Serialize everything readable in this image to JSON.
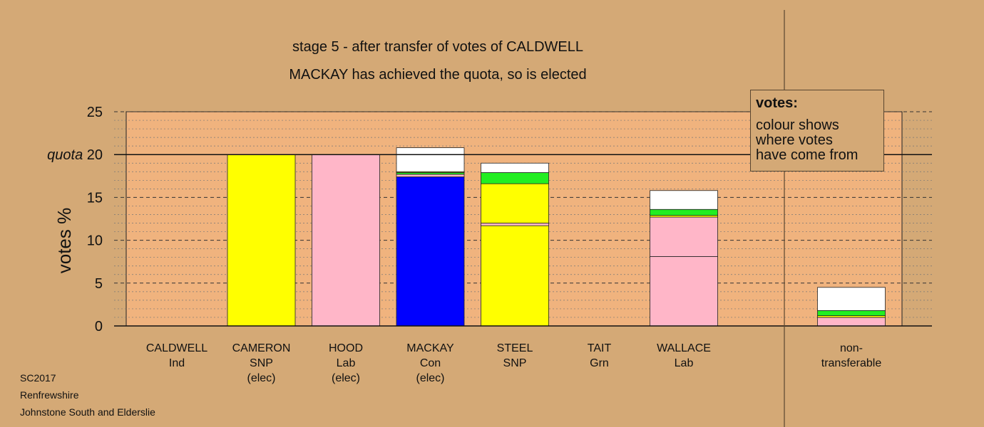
{
  "title_line1": "stage 5 - after transfer of votes of CALDWELL",
  "title_line2": "MACKAY has achieved the quota, so is elected",
  "legend": {
    "title": "votes:",
    "text": [
      "colour shows",
      "where votes",
      "have come from"
    ]
  },
  "footer": [
    "SC2017",
    "Renfrewshire",
    "Johnstone South and Elderslie"
  ],
  "colors": {
    "background": "#d4a976",
    "plot_fill": "#f0b37e",
    "Con": "#0000ff",
    "SNP": "#ffff00",
    "Lab": "#ffb6c8",
    "Grn": "#22ee22",
    "Ind": "#ffffff"
  },
  "chart_data": {
    "type": "bar",
    "stacked": true,
    "ylabel": "votes %",
    "ylim": [
      0,
      25
    ],
    "yticks": [
      "0",
      "5",
      "10",
      "15",
      "quota 20",
      "25"
    ],
    "quota": 20,
    "grid": true,
    "categories": [
      {
        "name": "CALDWELL",
        "party": "Ind",
        "status": ""
      },
      {
        "name": "CAMERON",
        "party": "SNP",
        "status": "(elec)"
      },
      {
        "name": "HOOD",
        "party": "Lab",
        "status": "(elec)"
      },
      {
        "name": "MACKAY",
        "party": "Con",
        "status": "(elec)"
      },
      {
        "name": "STEEL",
        "party": "SNP",
        "status": ""
      },
      {
        "name": "TAIT",
        "party": "Grn",
        "status": ""
      },
      {
        "name": "WALLACE",
        "party": "Lab",
        "status": ""
      },
      {
        "name": "non-",
        "party": "transferable",
        "status": ""
      }
    ],
    "bars": [
      {
        "category": "CALDWELL",
        "segments": []
      },
      {
        "category": "CAMERON",
        "segments": [
          {
            "from": "SNP",
            "value": 20.0
          }
        ]
      },
      {
        "category": "HOOD",
        "segments": [
          {
            "from": "Lab",
            "value": 20.0
          }
        ]
      },
      {
        "category": "MACKAY",
        "segments": [
          {
            "from": "Con",
            "value": 17.4
          },
          {
            "from": "Lab",
            "value": 0.3
          },
          {
            "from": "Grn",
            "value": 0.2
          },
          {
            "from": "SNP",
            "value": 0.1
          },
          {
            "from": "Ind",
            "value": 2.8
          }
        ]
      },
      {
        "category": "STEEL",
        "segments": [
          {
            "from": "SNP",
            "value": 11.7
          },
          {
            "from": "Lab",
            "value": 0.3
          },
          {
            "from": "SNP",
            "value": 4.6
          },
          {
            "from": "Grn",
            "value": 1.3
          },
          {
            "from": "Ind",
            "value": 1.1
          }
        ]
      },
      {
        "category": "TAIT",
        "segments": []
      },
      {
        "category": "WALLACE",
        "segments": [
          {
            "from": "Lab",
            "value": 8.1
          },
          {
            "from": "Lab",
            "value": 4.6
          },
          {
            "from": "SNP",
            "value": 0.2
          },
          {
            "from": "Grn",
            "value": 0.7
          },
          {
            "from": "Ind",
            "value": 2.2
          }
        ]
      },
      {
        "category": "non-transferable",
        "segments": [
          {
            "from": "Lab",
            "value": 1.0
          },
          {
            "from": "SNP",
            "value": 0.2
          },
          {
            "from": "Grn",
            "value": 0.6
          },
          {
            "from": "Ind",
            "value": 2.7
          }
        ]
      }
    ]
  }
}
